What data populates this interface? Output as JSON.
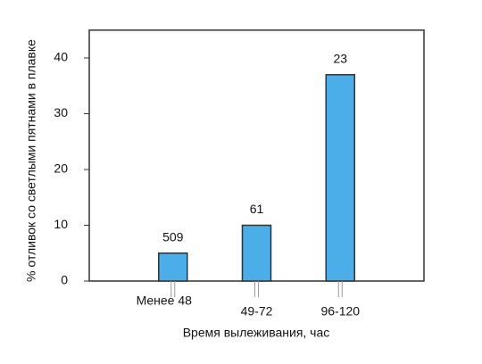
{
  "chart_data": {
    "type": "bar",
    "x_label": "Время вылеживания, час",
    "y_label": "% отливок со светлыми пятнами в плавке",
    "categories": [
      "Менее 48",
      "49-72",
      "96-120"
    ],
    "values": [
      5,
      10,
      37
    ],
    "bar_annotations": [
      "509",
      "61",
      "23"
    ],
    "color": "#4baee8",
    "ylim": [
      0,
      45
    ],
    "yticks": [
      0,
      10,
      20,
      30,
      40
    ],
    "grid": false
  }
}
